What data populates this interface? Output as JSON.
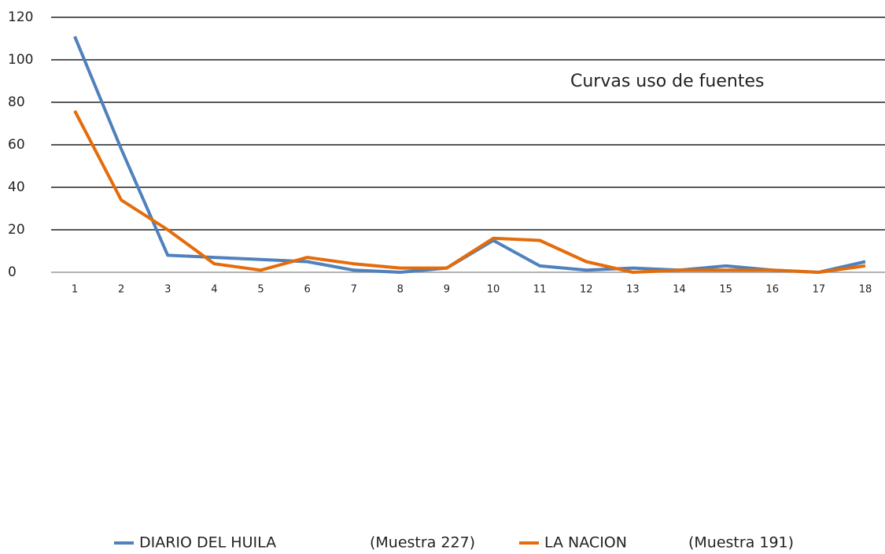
{
  "chart_data": {
    "type": "line",
    "annotation": "Curvas  uso de  fuentes",
    "categories": [
      "1",
      "2",
      "3",
      "4",
      "5",
      "6",
      "7",
      "8",
      "9",
      "10",
      "11",
      "12",
      "13",
      "14",
      "15",
      "16",
      "17",
      "18"
    ],
    "series": [
      {
        "name": "DIARIO DEL HUILA",
        "sample_label": "(Muestra 227)",
        "color": "#4f81bd",
        "values": [
          111,
          58,
          8,
          7,
          6,
          5,
          1,
          0,
          2,
          15,
          3,
          1,
          2,
          1,
          3,
          1,
          0,
          5
        ]
      },
      {
        "name": "LA NACION",
        "sample_label": "(Muestra 191)",
        "color": "#e46c0a",
        "values": [
          76,
          34,
          20,
          4,
          1,
          7,
          4,
          2,
          2,
          16,
          15,
          5,
          0,
          1,
          1,
          1,
          0,
          3
        ]
      }
    ],
    "ylim": [
      0,
      120
    ],
    "yticks": [
      0,
      20,
      40,
      60,
      80,
      100,
      120
    ],
    "grid": true
  }
}
